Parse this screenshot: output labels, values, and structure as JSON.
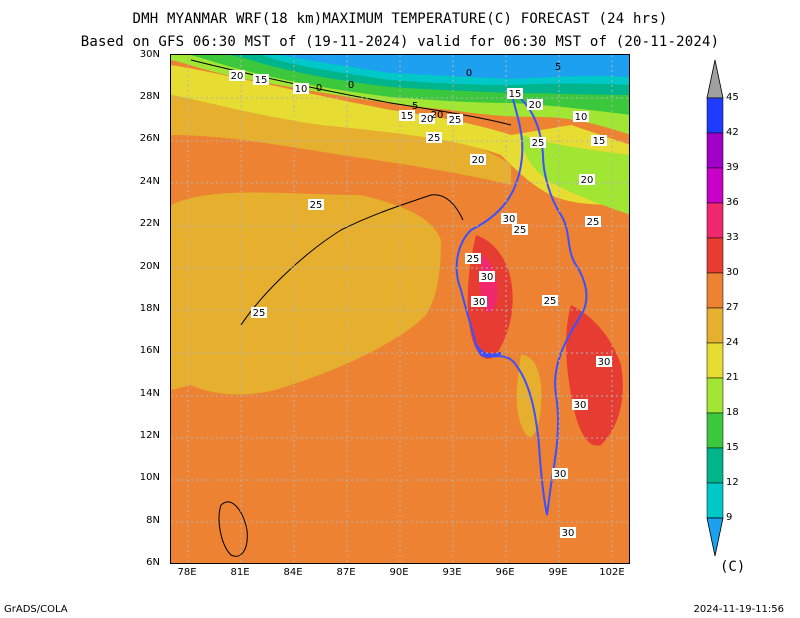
{
  "title_line1": "DMH MYANMAR WRF(18 km)MAXIMUM TEMPERATURE(C) FORECAST (24 hrs)",
  "title_line2": "Based on GFS 06:30 MST of (19-11-2024) valid for 06:30 MST of (20-11-2024)",
  "lat_labels": [
    "30N",
    "28N",
    "26N",
    "24N",
    "22N",
    "20N",
    "18N",
    "16N",
    "14N",
    "12N",
    "10N",
    "8N",
    "6N"
  ],
  "lon_labels": [
    "78E",
    "81E",
    "84E",
    "87E",
    "90E",
    "93E",
    "96E",
    "99E",
    "102E"
  ],
  "colorbar": {
    "levels": [
      "45",
      "42",
      "39",
      "36",
      "33",
      "30",
      "27",
      "24",
      "21",
      "18",
      "15",
      "12",
      "9"
    ],
    "unit": "(C)",
    "colors": [
      "#a0a0a0",
      "#1e3cff",
      "#a000c8",
      "#c800c8",
      "#f0286e",
      "#e63c32",
      "#ec8232",
      "#e6af2d",
      "#e6dc32",
      "#a0e632",
      "#3cc83c",
      "#00b48c",
      "#00c8c8",
      "#1ea0f0"
    ]
  },
  "contour_labels": [
    {
      "text": "20"
    },
    {
      "text": "15"
    },
    {
      "text": "10"
    },
    {
      "text": "0"
    },
    {
      "text": "0"
    },
    {
      "text": "0"
    },
    {
      "text": "5"
    },
    {
      "text": "15"
    },
    {
      "text": "20"
    },
    {
      "text": "5"
    },
    {
      "text": "15"
    },
    {
      "text": "20"
    },
    {
      "text": "20"
    },
    {
      "text": "25"
    },
    {
      "text": "25"
    },
    {
      "text": "20"
    },
    {
      "text": "25"
    },
    {
      "text": "10"
    },
    {
      "text": "15"
    },
    {
      "text": "20"
    },
    {
      "text": "25"
    },
    {
      "text": "30"
    },
    {
      "text": "25"
    },
    {
      "text": "25"
    },
    {
      "text": "25"
    },
    {
      "text": "30"
    },
    {
      "text": "30"
    },
    {
      "text": "25"
    },
    {
      "text": "30"
    },
    {
      "text": "30"
    },
    {
      "text": "30"
    },
    {
      "text": "30"
    },
    {
      "text": "25"
    }
  ],
  "footer_left": "GrADS/COLA",
  "footer_right": "2024-11-19-11:56"
}
